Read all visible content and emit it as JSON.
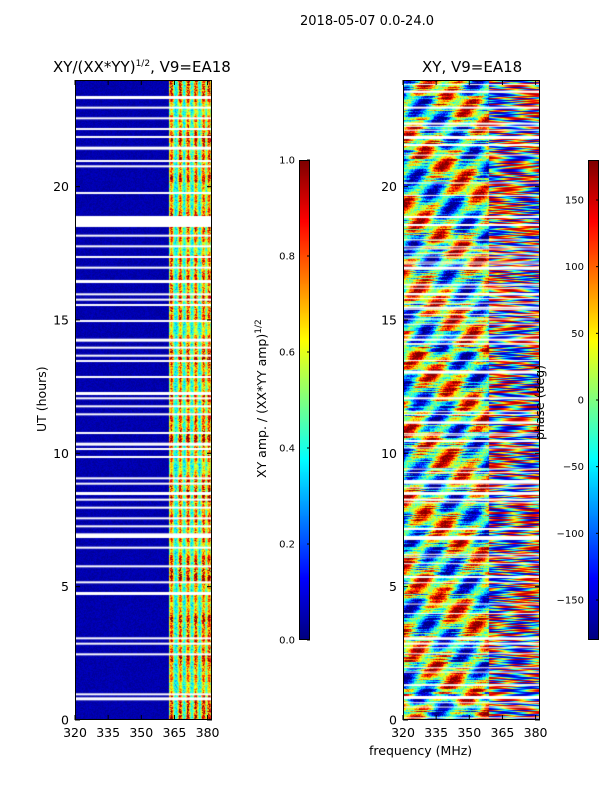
{
  "suptitle": "2018-05-07 0.0-24.0",
  "chart_data": [
    {
      "type": "heatmap",
      "title_prefix": "XY/(XX*YY)",
      "title_sup": "1/2",
      "title_suffix": ", V9=EA18",
      "xlabel": "",
      "ylabel": "UT (hours)",
      "xlim": [
        320,
        382
      ],
      "ylim": [
        0,
        24
      ],
      "xticks": [
        320,
        335,
        350,
        365,
        380
      ],
      "yticks": [
        0,
        5,
        10,
        15,
        20
      ],
      "colorbar": {
        "label_main": "XY amp. / (XX*YY amp)",
        "label_sup": "1/2",
        "range": [
          0.0,
          1.0
        ],
        "ticks": [
          {
            "value": 0.0,
            "text": "0.0"
          },
          {
            "value": 0.2,
            "text": "0.2"
          },
          {
            "value": 0.4,
            "text": "0.4"
          },
          {
            "value": 0.6,
            "text": "0.6"
          },
          {
            "value": 0.8,
            "text": "0.8"
          },
          {
            "value": 1.0,
            "text": "1.0"
          }
        ],
        "colormap": "jet"
      },
      "gap_hours": [
        0.85,
        1.0,
        2.5,
        2.9,
        3.1,
        4.8,
        5.2,
        5.8,
        6.5,
        6.9,
        7.0,
        7.3,
        7.6,
        8.0,
        8.3,
        8.55,
        8.9,
        9.1,
        9.9,
        10.2,
        10.4,
        10.8,
        11.5,
        11.8,
        12.1,
        12.3,
        12.9,
        13.5,
        13.7,
        14.0,
        14.3,
        15.0,
        15.6,
        15.8,
        16.0,
        16.5,
        17.0,
        17.4,
        17.8,
        18.2,
        18.6,
        18.9,
        19.8,
        20.8,
        21.0,
        21.5,
        21.9,
        22.2,
        22.6,
        23.0,
        23.4
      ],
      "active_band_mhz": [
        362,
        381
      ],
      "active_channels_mhz": [
        363,
        367,
        370.5,
        374,
        377.5,
        380
      ]
    },
    {
      "type": "heatmap",
      "title": "XY, V9=EA18",
      "xlabel": "frequency (MHz)",
      "ylabel": "",
      "xlim": [
        320,
        382
      ],
      "ylim": [
        0,
        24
      ],
      "xticks": [
        320,
        335,
        350,
        365,
        380
      ],
      "yticks": [
        0,
        5,
        10,
        15,
        20
      ],
      "colorbar": {
        "label_main": "phase (deg)",
        "range": [
          -180,
          180
        ],
        "ticks": [
          {
            "value": -150,
            "text": "−150"
          },
          {
            "value": -100,
            "text": "−100"
          },
          {
            "value": -50,
            "text": "−50"
          },
          {
            "value": 0,
            "text": "0"
          },
          {
            "value": 50,
            "text": "50"
          },
          {
            "value": 100,
            "text": "100"
          },
          {
            "value": 150,
            "text": "150"
          }
        ],
        "colormap": "jet"
      },
      "gap_hours": [
        0.9,
        2.9,
        3.1,
        5.4,
        6.9,
        7.2,
        8.3,
        8.55,
        9.0,
        10.5,
        11.2,
        12.1,
        13.1,
        14.3,
        15.5,
        16.0,
        17.0,
        18.6,
        18.9,
        21.6,
        21.9,
        22.4,
        23.0,
        23.6
      ]
    }
  ]
}
